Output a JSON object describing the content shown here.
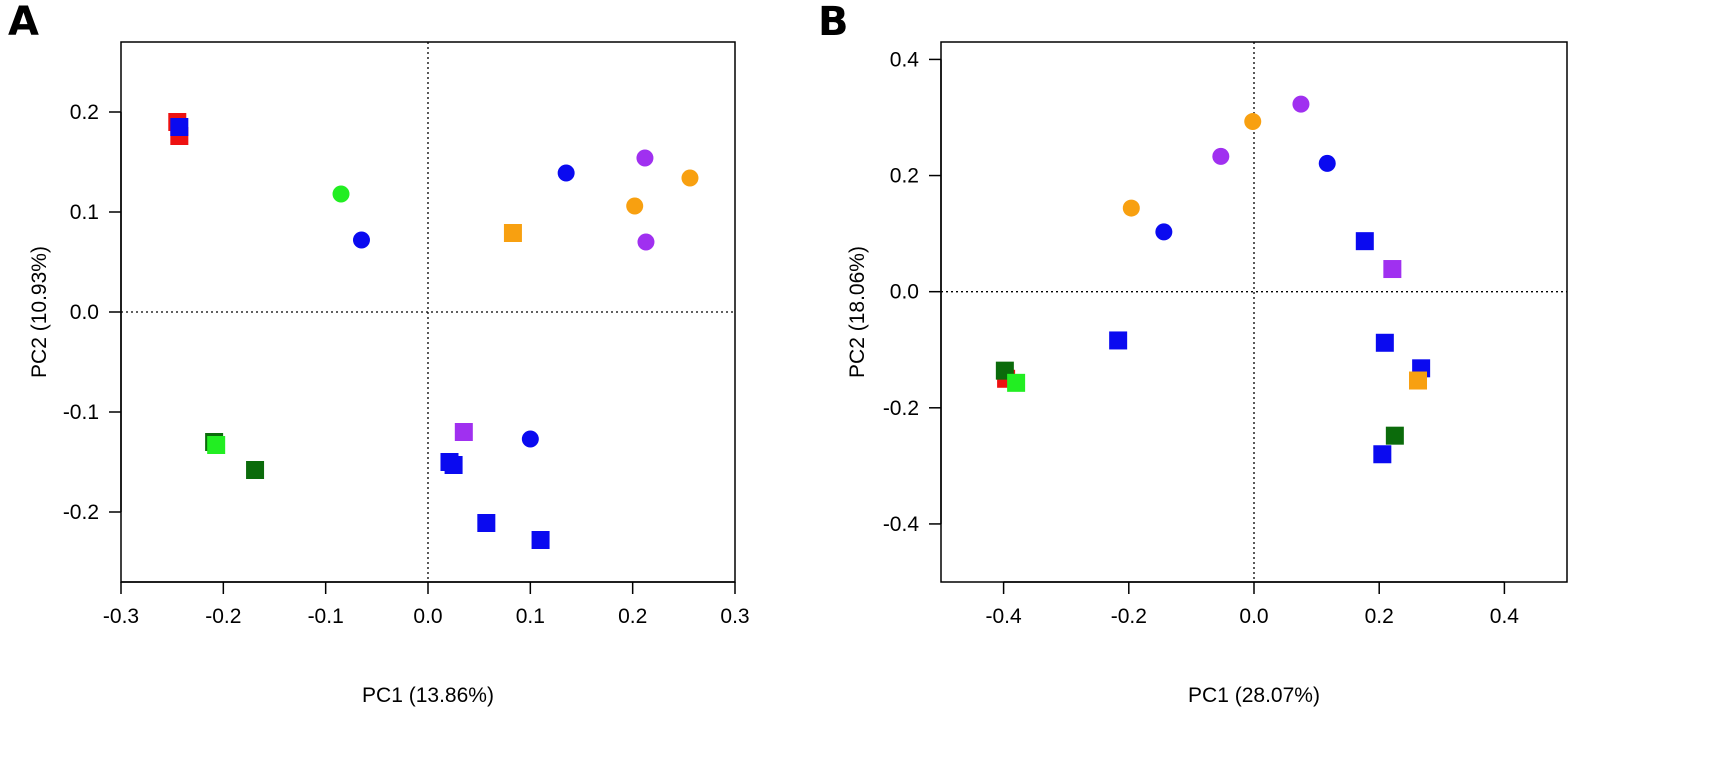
{
  "figure": {
    "background": "#ffffff"
  },
  "chart_data": [
    {
      "panel": "A",
      "type": "scatter",
      "title": "",
      "xlabel": "PC1 (13.86%)",
      "ylabel": "PC2 (10.93%)",
      "xlim": [
        -0.3,
        0.3
      ],
      "ylim": [
        -0.27,
        0.27
      ],
      "xticks": [
        -0.3,
        -0.2,
        -0.1,
        0.0,
        0.1,
        0.2,
        0.3
      ],
      "xtick_labels": [
        "-0.3",
        "-0.2",
        "-0.1",
        "0.0",
        "0.1",
        "0.2",
        "0.3"
      ],
      "yticks": [
        -0.2,
        -0.1,
        0.0,
        0.1,
        0.2
      ],
      "ytick_labels": [
        "-0.2",
        "-0.1",
        "0.0",
        "0.1",
        "0.2"
      ],
      "reference_lines": {
        "x": 0,
        "y": 0,
        "style": "dotted"
      },
      "grid": false,
      "points": [
        {
          "x": -0.245,
          "y": 0.19,
          "shape": "square",
          "color": "#ee1111"
        },
        {
          "x": -0.243,
          "y": 0.176,
          "shape": "square",
          "color": "#ee1111"
        },
        {
          "x": -0.243,
          "y": 0.185,
          "shape": "square",
          "color": "#0a0af0"
        },
        {
          "x": -0.085,
          "y": 0.118,
          "shape": "circle",
          "color": "#22ee22"
        },
        {
          "x": -0.065,
          "y": 0.072,
          "shape": "circle",
          "color": "#0a0af0"
        },
        {
          "x": 0.135,
          "y": 0.139,
          "shape": "circle",
          "color": "#0a0af0"
        },
        {
          "x": 0.212,
          "y": 0.154,
          "shape": "circle",
          "color": "#a030f0"
        },
        {
          "x": 0.256,
          "y": 0.134,
          "shape": "circle",
          "color": "#f8a010"
        },
        {
          "x": 0.202,
          "y": 0.106,
          "shape": "circle",
          "color": "#f8a010"
        },
        {
          "x": 0.213,
          "y": 0.07,
          "shape": "circle",
          "color": "#a030f0"
        },
        {
          "x": 0.083,
          "y": 0.079,
          "shape": "square",
          "color": "#f8a010"
        },
        {
          "x": -0.209,
          "y": -0.13,
          "shape": "square",
          "color": "#0b6b0b"
        },
        {
          "x": -0.207,
          "y": -0.133,
          "shape": "square",
          "color": "#22ee22"
        },
        {
          "x": -0.169,
          "y": -0.158,
          "shape": "square",
          "color": "#0b6b0b"
        },
        {
          "x": 0.035,
          "y": -0.12,
          "shape": "square",
          "color": "#a030f0"
        },
        {
          "x": 0.1,
          "y": -0.127,
          "shape": "circle",
          "color": "#0a0af0"
        },
        {
          "x": 0.021,
          "y": -0.15,
          "shape": "square",
          "color": "#0a0af0"
        },
        {
          "x": 0.025,
          "y": -0.153,
          "shape": "square",
          "color": "#0a0af0"
        },
        {
          "x": 0.057,
          "y": -0.211,
          "shape": "square",
          "color": "#0a0af0"
        },
        {
          "x": 0.11,
          "y": -0.228,
          "shape": "square",
          "color": "#0a0af0"
        }
      ]
    },
    {
      "panel": "B",
      "type": "scatter",
      "title": "",
      "xlabel": "PC1 (28.07%)",
      "ylabel": "PC2 (18.06%)",
      "xlim": [
        -0.5,
        0.5
      ],
      "ylim": [
        -0.5,
        0.43
      ],
      "xticks": [
        -0.4,
        -0.2,
        0.0,
        0.2,
        0.4
      ],
      "xtick_labels": [
        "-0.4",
        "-0.2",
        "0.0",
        "0.2",
        "0.4"
      ],
      "yticks": [
        -0.4,
        -0.2,
        0.0,
        0.2,
        0.4
      ],
      "ytick_labels": [
        "-0.4",
        "-0.2",
        "0.0",
        "0.2",
        "0.4"
      ],
      "reference_lines": {
        "x": 0,
        "y": 0,
        "style": "dotted"
      },
      "grid": false,
      "points": [
        {
          "x": 0.075,
          "y": 0.323,
          "shape": "circle",
          "color": "#a030f0"
        },
        {
          "x": -0.002,
          "y": 0.293,
          "shape": "circle",
          "color": "#f8a010"
        },
        {
          "x": -0.053,
          "y": 0.233,
          "shape": "circle",
          "color": "#a030f0"
        },
        {
          "x": 0.117,
          "y": 0.221,
          "shape": "circle",
          "color": "#0a0af0"
        },
        {
          "x": -0.196,
          "y": 0.144,
          "shape": "circle",
          "color": "#f8a010"
        },
        {
          "x": -0.144,
          "y": 0.103,
          "shape": "circle",
          "color": "#0a0af0"
        },
        {
          "x": 0.177,
          "y": 0.087,
          "shape": "square",
          "color": "#0a0af0"
        },
        {
          "x": 0.221,
          "y": 0.039,
          "shape": "square",
          "color": "#a030f0"
        },
        {
          "x": -0.217,
          "y": -0.084,
          "shape": "square",
          "color": "#0a0af0"
        },
        {
          "x": 0.209,
          "y": -0.088,
          "shape": "square",
          "color": "#0a0af0"
        },
        {
          "x": 0.267,
          "y": -0.132,
          "shape": "square",
          "color": "#0a0af0"
        },
        {
          "x": 0.262,
          "y": -0.153,
          "shape": "square",
          "color": "#f8a010"
        },
        {
          "x": -0.396,
          "y": -0.15,
          "shape": "square",
          "color": "#ee1111"
        },
        {
          "x": -0.398,
          "y": -0.136,
          "shape": "square",
          "color": "#0b6b0b"
        },
        {
          "x": -0.38,
          "y": -0.157,
          "shape": "square",
          "color": "#22ee22"
        },
        {
          "x": 0.225,
          "y": -0.248,
          "shape": "square",
          "color": "#0b6b0b"
        },
        {
          "x": 0.205,
          "y": -0.28,
          "shape": "square",
          "color": "#0a0af0"
        }
      ]
    }
  ]
}
